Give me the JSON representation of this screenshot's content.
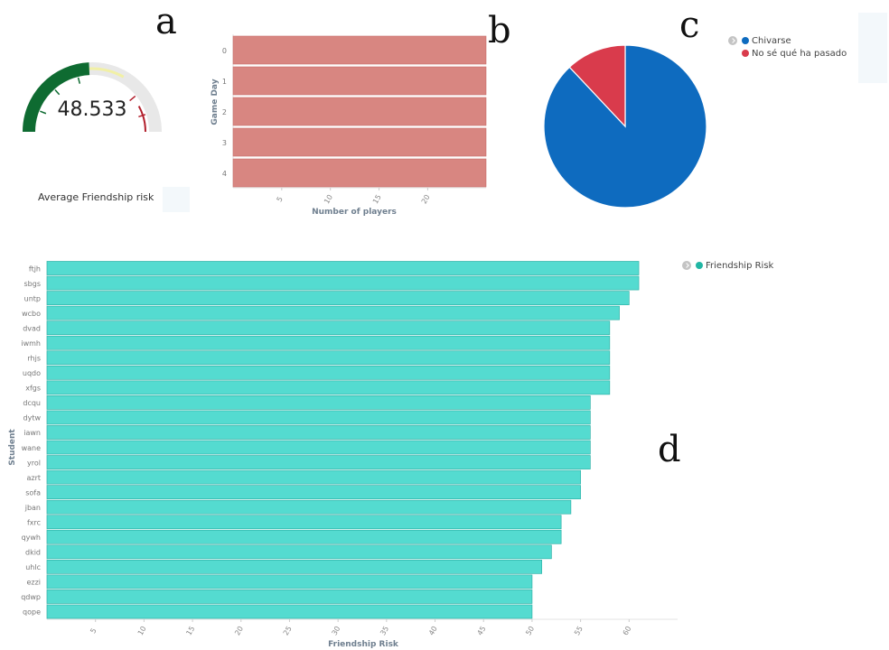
{
  "panel_letters": {
    "a": "a",
    "b": "b",
    "c": "c",
    "d": "d"
  },
  "colors": {
    "gauge_green": "#0e6b31",
    "gauge_light": "#f1f0a6",
    "gauge_gray": "#e8e8e8",
    "gauge_red": "#b11e2b",
    "bar_b": "#d88681",
    "pie_chivarse": "#0e6bbf",
    "pie_no_se": "#d93b4c",
    "bar_d": "#54dbd0",
    "bar_d_stroke": "#2fb3a8",
    "legend_d_dot": "#21b6a4"
  },
  "chart_data": [
    {
      "type": "gauge",
      "value_label": "48.533",
      "value": 48.533,
      "range": [
        0,
        100
      ],
      "caption": "Average Friendship risk"
    },
    {
      "type": "bar",
      "orientation": "horizontal",
      "categories": [
        "0",
        "1",
        "2",
        "3",
        "4"
      ],
      "values": [
        26,
        26,
        26,
        26,
        26
      ],
      "xlabel": "Number of players",
      "ylabel": "Game Day",
      "x_ticks": [
        "5",
        "10",
        "15",
        "20"
      ],
      "xlim": [
        0,
        26
      ]
    },
    {
      "type": "pie",
      "labels": [
        "Chivarse",
        "No sé qué ha pasado"
      ],
      "values": [
        88,
        12
      ],
      "legend_position": "top-right"
    },
    {
      "type": "bar",
      "orientation": "horizontal",
      "categories": [
        "ftjh",
        "sbgs",
        "untp",
        "wcbo",
        "dvad",
        "iwmh",
        "rhjs",
        "uqdo",
        "xfgs",
        "dcqu",
        "dytw",
        "iawn",
        "wane",
        "yrol",
        "azrt",
        "sofa",
        "jban",
        "fxrc",
        "qywh",
        "dkid",
        "uhlc",
        "ezzi",
        "qdwp",
        "qope"
      ],
      "values": [
        61,
        61,
        60,
        59,
        58,
        58,
        58,
        58,
        58,
        56,
        56,
        56,
        56,
        56,
        55,
        55,
        54,
        53,
        53,
        52,
        51,
        50,
        50,
        50
      ],
      "xlabel": "Friendship Risk",
      "ylabel": "Student",
      "x_ticks": [
        "5",
        "10",
        "15",
        "20",
        "25",
        "30",
        "35",
        "40",
        "45",
        "50",
        "55",
        "60"
      ],
      "xlim": [
        0,
        65
      ],
      "legend": [
        "Friendship Risk"
      ],
      "legend_position": "top-right"
    }
  ]
}
